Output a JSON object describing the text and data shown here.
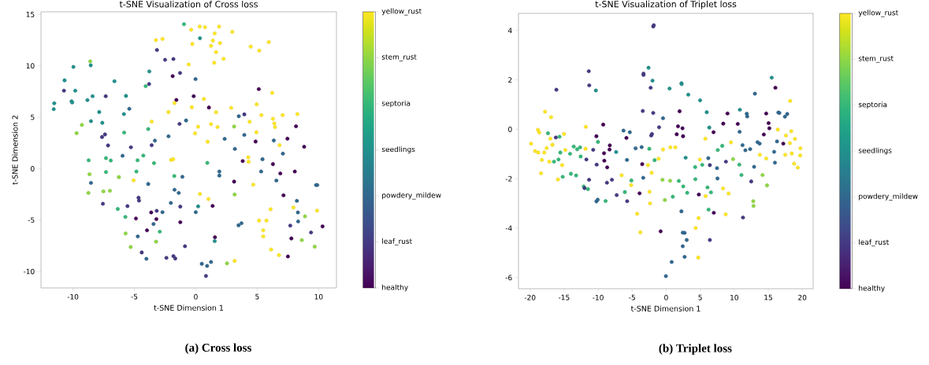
{
  "chart_data": [
    {
      "type": "scatter",
      "title": "t-SNE Visualization of Cross loss",
      "xlabel": "t-SNE Dimension 1",
      "ylabel": "t-SNE Dimension 2",
      "marker": "circle",
      "xlim": [
        -12.6,
        11.45
      ],
      "ylim": [
        -11.6,
        15.26
      ],
      "xticks": [
        -10,
        -5,
        0,
        5,
        10
      ],
      "yticks": [
        -10,
        -5,
        0,
        5,
        10,
        15
      ],
      "clim": [
        0,
        6
      ],
      "cticks": [
        {
          "value": 0,
          "label": "healthy"
        },
        {
          "value": 1,
          "label": "leaf_rust"
        },
        {
          "value": 2,
          "label": "powdery_mildew"
        },
        {
          "value": 3,
          "label": "seedlings"
        },
        {
          "value": 4,
          "label": "septoria"
        },
        {
          "value": 5,
          "label": "stem_rust"
        },
        {
          "value": 6,
          "label": "yellow_rust"
        }
      ],
      "annotations": [
        "(a) Cross loss"
      ],
      "x": [
        -0.96,
        -0.38,
        0.32,
        0.75,
        1.9,
        1.54,
        2.97,
        -3.25,
        -2.71,
        0.34,
        -0.28,
        1.39,
        1.24,
        1.97,
        1.65,
        2.26,
        1.5,
        4.47,
        5.17,
        5.94,
        -3.16,
        -2.5,
        -1.82,
        -0.58,
        -1.28,
        -1.88,
        -0.02,
        -3.78,
        -3.8,
        -4.08,
        -8.59,
        -8.55,
        -9.96,
        -10.68,
        -10.73,
        -9.81,
        -6.62,
        -11.52,
        -11.56,
        -10.11,
        -10.06,
        -8.82,
        -8.4,
        -7.33,
        -5.68,
        -5.41,
        -7.86,
        -5.85,
        -8.53,
        -7.61,
        -9.27,
        -9.7,
        -7.39,
        -7.63,
        -7.14,
        -5.83,
        -5.28,
        -3.87,
        -3.33,
        -3.59,
        -3.59,
        -2.22,
        -1.58,
        -1.73,
        -0.17,
        0.66,
        -0.32,
        -2.22,
        -1.32,
        -0.79,
        1.07,
        1.65,
        2.88,
        0.19,
        -0.06,
        1.24,
        1.77,
        0.96,
        2.35,
        3.12,
        3.5,
        3.95,
        4.38,
        4.96,
        5.34,
        5.13,
        6.22,
        4.94,
        3.95,
        4.87,
        3.18,
        6.28,
        6.39,
        6.45,
        7.07,
        8.27,
        8.16,
        7.46,
        6.35,
        6.82,
        8.82,
        7.09,
        -2.01,
        -1.84,
        -4.27,
        -5.96,
        -7.31,
        -6.92,
        -8.72,
        -4.74,
        -3.4,
        -7.31,
        -8.65,
        -4.83,
        -6.26,
        -5.06,
        -8.53,
        -8.74,
        -7.52,
        -6.99,
        -7.56,
        -3.87,
        -1.75,
        -1.09,
        0.94,
        1.92,
        1.92,
        3.12,
        3.82,
        4.27,
        4.3,
        5.43,
        5.32,
        6.28,
        6.88,
        8.06,
        6.56,
        4.68,
        3.16,
        9.79,
        9.89,
        7.14,
        8.23,
        7.95,
        8.31,
        8.89,
        8.33,
        7.69,
        9.87,
        10.32,
        9.38,
        8.63,
        9.68,
        7.78,
        7.5,
        6.77,
        6.13,
        5.49,
        5.49,
        5.15,
        5.75,
        6.09,
        0.34,
        1.03,
        1.37,
        0.19,
        0.0,
        -1.73,
        -1.39,
        -2.03,
        -1.26,
        -1.26,
        -2.71,
        -3.18,
        -3.63,
        -3.21,
        -3.44,
        -4.66,
        -4.62,
        -5.56,
        -6.35,
        -5.73,
        -4.87,
        -3.97,
        -2.93,
        -3.23,
        -5.71,
        -4.72,
        -5.3,
        -4.4,
        -4.02,
        -2.39,
        -1.82,
        -1.67,
        -0.88,
        1.56,
        1.54,
        3.48,
        3.72,
        2.54,
        3.16,
        0.49,
        0.92,
        1.24,
        0.83
      ],
      "values": [
        14.05,
        13.51,
        13.82,
        13.77,
        13.82,
        13.15,
        13.31,
        12.51,
        12.62,
        12.69,
        12.13,
        12.46,
        11.95,
        12.21,
        11.33,
        10.69,
        10.31,
        11.87,
        11.49,
        12.31,
        11.54,
        10.59,
        10.67,
        10.13,
        9.31,
        9.0,
        8.72,
        9.46,
        8.23,
        8.03,
        10.44,
        10.05,
        9.9,
        8.59,
        7.59,
        7.59,
        8.51,
        6.36,
        5.79,
        6.56,
        6.44,
        6.67,
        7.05,
        7.05,
        7.08,
        5.82,
        5.51,
        5.31,
        4.62,
        4.46,
        4.26,
        3.46,
        3.33,
        3.08,
        2.26,
        3.51,
        2.08,
        3.85,
        2.72,
        2.28,
        4.59,
        3.15,
        6.69,
        6.38,
        7.05,
        6.79,
        5.97,
        5.51,
        4.36,
        4.69,
        5.95,
        5.49,
        5.92,
        4.08,
        3.44,
        4.33,
        4.05,
        2.62,
        2.9,
        4.1,
        5.1,
        5.28,
        4.56,
        6.26,
        5.21,
        7.74,
        7.38,
        3.54,
        3.28,
        2.64,
        1.92,
        4.85,
        4.41,
        4.05,
        5.21,
        5.31,
        4.13,
        2.92,
        2.74,
        2.28,
        2.13,
        1.46,
        0.85,
        0.92,
        1.28,
        1.26,
        1.03,
        0.79,
        0.82,
        0.82,
        0.54,
        -0.33,
        -0.54,
        -0.28,
        -0.82,
        -1.13,
        -1.38,
        -2.36,
        -2.21,
        -2.15,
        -3.41,
        -1.49,
        -0.72,
        -0.79,
        0.56,
        -0.28,
        -0.67,
        -1.26,
        0.74,
        1.1,
        0.67,
        0.92,
        -0.28,
        0.44,
        -0.46,
        -0.28,
        -1.15,
        -1.56,
        -2.51,
        -1.59,
        -1.59,
        -2.59,
        -3.13,
        -3.77,
        -4.26,
        -4.64,
        -5.13,
        -5.54,
        -4.08,
        -5.62,
        -6.21,
        -6.95,
        -7.59,
        -6.79,
        -8.54,
        -8.41,
        -7.87,
        -6.0,
        -6.59,
        -5.05,
        -5.05,
        -3.95,
        -2.46,
        -2.95,
        -3.62,
        -3.67,
        -4.23,
        -2.05,
        -2.36,
        -3.33,
        -3.69,
        -5.21,
        -4.23,
        -4.1,
        -4.26,
        -4.9,
        -5.38,
        -2.82,
        -3.1,
        -3.64,
        -3.92,
        -4.69,
        -4.85,
        -6.0,
        -6.13,
        -7.1,
        -6.31,
        -6.59,
        -7.62,
        -8.15,
        -8.77,
        -8.67,
        -8.51,
        -8.74,
        -7.54,
        -6.67,
        -7.05,
        -5.51,
        -5.31,
        -9.21,
        -8.97,
        -9.26,
        -9.46,
        -9.08,
        -10.44
      ],
      "cvalues": [
        4,
        6,
        6,
        6,
        6,
        6,
        6,
        6,
        6,
        3,
        6,
        6,
        6,
        6,
        6,
        6,
        6,
        6,
        6,
        6,
        1,
        1,
        1,
        6,
        1,
        0,
        2,
        3,
        1,
        4,
        5,
        3,
        3,
        3,
        1,
        3,
        3,
        3,
        3,
        3,
        3,
        3,
        3,
        1,
        3,
        2,
        3,
        3,
        3,
        3,
        5,
        5,
        1,
        1,
        1,
        4,
        1,
        4,
        2,
        1,
        6,
        2,
        0,
        6,
        0,
        6,
        6,
        6,
        1,
        2,
        0,
        6,
        6,
        6,
        6,
        6,
        6,
        6,
        2,
        5,
        2,
        1,
        6,
        6,
        6,
        0,
        6,
        6,
        2,
        0,
        2,
        6,
        6,
        6,
        6,
        6,
        0,
        0,
        2,
        6,
        0,
        2,
        6,
        6,
        4,
        2,
        4,
        4,
        4,
        4,
        4,
        4,
        5,
        4,
        5,
        6,
        2,
        5,
        5,
        5,
        1,
        2,
        4,
        2,
        4,
        2,
        2,
        0,
        0,
        6,
        6,
        2,
        2,
        0,
        0,
        0,
        2,
        6,
        5,
        2,
        2,
        0,
        2,
        6,
        2,
        5,
        2,
        1,
        6,
        0,
        1,
        5,
        5,
        0,
        0,
        6,
        6,
        6,
        6,
        6,
        6,
        6,
        6,
        6,
        0,
        3,
        2,
        2,
        2,
        2,
        1,
        0,
        2,
        1,
        0,
        0,
        2,
        1,
        1,
        1,
        4,
        4,
        0,
        0,
        4,
        5,
        5,
        2,
        5,
        1,
        2,
        1,
        1,
        1,
        1,
        0,
        3,
        2,
        2,
        5,
        6,
        2,
        2,
        2,
        1
      ]
    },
    {
      "type": "scatter",
      "title": "t-SNE Visualization of Triplet loss",
      "xlabel": "t-SNE Dimension 1",
      "marker": "circle",
      "xlim": [
        -21.7,
        21.6
      ],
      "ylim": [
        -6.45,
        4.69
      ],
      "xticks": [
        -20,
        -15,
        -10,
        -5,
        0,
        5,
        10,
        15,
        20
      ],
      "yticks": [
        -6,
        -4,
        -2,
        0,
        2,
        4
      ],
      "clim": [
        0,
        6
      ],
      "cticks": [
        {
          "value": 0,
          "label": "healthy"
        },
        {
          "value": 1,
          "label": "leaf_rust"
        },
        {
          "value": 2,
          "label": "powdery_mildew"
        },
        {
          "value": 3,
          "label": "seedlings"
        },
        {
          "value": 4,
          "label": "septoria"
        },
        {
          "value": 5,
          "label": "stem_rust"
        },
        {
          "value": 6,
          "label": "yellow_rust"
        }
      ],
      "annotations": [
        "(b) Triplet loss"
      ],
      "x": [
        -19.85,
        -19.26,
        -18.8,
        -18.84,
        -18.65,
        -18.38,
        -18.26,
        -17.91,
        -17.8,
        -17.56,
        -17.37,
        -17.17,
        -17.02,
        -16.91,
        -16.71,
        -16.48,
        -16.21,
        -16.13,
        -15.9,
        -15.82,
        -15.67,
        -15.55,
        -15.28,
        -15.2,
        -15.01,
        -14.82,
        -14.12,
        -13.58,
        -13.23,
        -13.08,
        -12.65,
        -14.0,
        -12.57,
        -12.11,
        -11.99,
        -11.49,
        -11.84,
        -11.8,
        -11.72,
        -11.33,
        -11.37,
        -11.3,
        -10.72,
        -10.33,
        -10.25,
        -10.21,
        -10.02,
        -10.25,
        -10.06,
        -9.25,
        -9.13,
        -9.09,
        -8.67,
        -8.7,
        -8.9,
        -8.32,
        -8.28,
        -7.97,
        -7.35,
        -7.27,
        -6.54,
        -6.27,
        -6.07,
        -5.84,
        -5.76,
        -5.73,
        -5.34,
        -5.15,
        -5.11,
        -4.49,
        -4.26,
        -3.91,
        -3.79,
        -3.6,
        -3.52,
        -3.44,
        -3.37,
        -3.33,
        -3.33,
        -2.67,
        -2.59,
        -2.48,
        -2.44,
        -2.36,
        -2.28,
        -2.2,
        -2.13,
        -2.09,
        -2.01,
        -1.9,
        -1.82,
        -1.9,
        -1.7,
        -1.12,
        -1.04,
        -0.81,
        -0.54,
        -0.46,
        -0.46,
        -0.19,
        -0.04,
        0.5,
        0.58,
        0.62,
        0.81,
        0.97,
        1.35,
        1.55,
        1.74,
        1.86,
        1.97,
        2.24,
        2.24,
        2.28,
        2.4,
        2.48,
        2.51,
        2.44,
        2.71,
        2.44,
        2.71,
        2.86,
        3.02,
        3.09,
        3.25,
        4.26,
        4.29,
        4.33,
        4.76,
        4.72,
        4.8,
        4.95,
        4.99,
        5.3,
        5.76,
        5.8,
        5.96,
        6.07,
        6.19,
        6.23,
        6.34,
        6.42,
        6.42,
        6.58,
        6.96,
        7.0,
        7.54,
        7.47,
        7.58,
        8.24,
        8.36,
        8.39,
        8.74,
        8.78,
        9.01,
        9.17,
        9.52,
        9.83,
        10.52,
        10.75,
        10.83,
        10.79,
        11.06,
        11.22,
        11.29,
        11.64,
        11.84,
        11.91,
        12.34,
        12.5,
        12.8,
        12.84,
        12.92,
        13.04,
        13.42,
        13.73,
        13.77,
        14.16,
        14.35,
        14.7,
        14.82,
        14.7,
        15.05,
        15.16,
        15.51,
        15.86,
        15.98,
        16.05,
        16.29,
        16.4,
        16.48,
        16.63,
        17.21,
        17.45,
        17.49,
        17.6,
        17.79,
        18.18,
        18.22,
        18.38,
        18.45,
        18.8,
        18.92,
        19.34,
        19.73,
        19.69
      ],
      "values": [
        -0.58,
        -0.88,
        -0.94,
        -0.02,
        -0.13,
        -1.78,
        -1.24,
        -0.94,
        0.71,
        -0.76,
        -0.16,
        -1.31,
        -0.38,
        0.49,
        -0.63,
        -1.31,
        -0.33,
        1.6,
        -2.03,
        -1.22,
        -0.3,
        -0.94,
        -1.45,
        -1.92,
        -0.19,
        -0.84,
        -0.99,
        -0.7,
        -1.87,
        -0.81,
        -0.73,
        -1.8,
        -1.1,
        -2.31,
        -2.38,
        -2.42,
        -0.79,
        0.1,
        -1.22,
        -2.04,
        2.35,
        1.78,
        -0.83,
        1.57,
        -0.28,
        -1.43,
        -0.51,
        -2.92,
        -2.85,
        0.19,
        -0.97,
        -1.27,
        -1.54,
        -2.16,
        -2.9,
        -0.82,
        -0.65,
        -2.04,
        -0.92,
        -2.66,
        -1.86,
        -0.05,
        -2.54,
        -0.35,
        -1.24,
        -2.91,
        -0.12,
        -2.26,
        -2.07,
        -0.77,
        -3.42,
        -2.59,
        -4.17,
        -0.72,
        -1.41,
        0.74,
        -1.96,
        2.25,
        2.2,
        -1.45,
        2.49,
        -0.79,
        -2.53,
        -3.0,
        1.68,
        -0.25,
        -1.76,
        -0.19,
        1.97,
        4.16,
        4.21,
        0.66,
        -1.25,
        -1.19,
        0.08,
        -4.13,
        -2.04,
        -0.82,
        0.45,
        -2.86,
        -5.94,
        1.65,
        -2.08,
        -0.73,
        -5.37,
        -2.73,
        -0.73,
        -0.2,
        0.12,
        -2.09,
        0.73,
        -3.32,
        1.86,
        1.83,
        0.04,
        -0.28,
        -2.31,
        -4.18,
        -4.19,
        -4.73,
        -5.16,
        -1.15,
        -4.48,
        -2.57,
        1.4,
        -1.53,
        -2.02,
        -3.99,
        -3.59,
        -5.19,
        -2.64,
        -1.22,
        1.17,
        -1.44,
        -0.38,
        -2.7,
        0.69,
        -2.35,
        -1.17,
        -3.25,
        0.07,
        -1.45,
        -4.48,
        -2.55,
        -0.12,
        -3.38,
        -1.99,
        -1.57,
        -0.84,
        -0.67,
        -2.39,
        0.23,
        -3.44,
        -1.31,
        0.64,
        -2.6,
        -0.53,
        -1.21,
        0.22,
        -1.43,
        0.79,
        -0.1,
        -1.85,
        -0.64,
        -3.57,
        -0.85,
        0.63,
        0.52,
        -0.8,
        -2.11,
        -2.91,
        -3.1,
        -1.52,
        1.44,
        -0.52,
        -0.58,
        -1.03,
        -1.85,
        -0.21,
        -1.18,
        -2.27,
        0.64,
        0.25,
        0.04,
        2.09,
        -0.91,
        -1.35,
        1.68,
        -0.49,
        -0.01,
        0.68,
        0.66,
        -0.58,
        0.51,
        -1.03,
        -0.25,
        0.62,
        -0.56,
        1.15,
        -0.08,
        -0.98,
        -1.39,
        -0.39,
        -1.55,
        -0.77,
        -1.06
      ],
      "cvalues": [
        6,
        6,
        6,
        6,
        6,
        6,
        6,
        6,
        6,
        6,
        4,
        6,
        6,
        6,
        6,
        4,
        1,
        1,
        6,
        4,
        4,
        4,
        6,
        4,
        6,
        6,
        4,
        4,
        4,
        4,
        4,
        4,
        4,
        4,
        1,
        4,
        6,
        6,
        1,
        1,
        1,
        1,
        1,
        3,
        0,
        1,
        4,
        2,
        2,
        0,
        0,
        0,
        0,
        1,
        4,
        0,
        0,
        1,
        3,
        1,
        6,
        2,
        4,
        0,
        2,
        1,
        2,
        6,
        4,
        2,
        6,
        0,
        6,
        2,
        0,
        1,
        2,
        1,
        1,
        6,
        3,
        4,
        6,
        6,
        1,
        1,
        6,
        1,
        3,
        1,
        1,
        1,
        4,
        6,
        1,
        0,
        5,
        6,
        2,
        5,
        2,
        3,
        5,
        6,
        2,
        4,
        6,
        0,
        0,
        4,
        0,
        2,
        3,
        3,
        0,
        0,
        4,
        2,
        2,
        2,
        2,
        3,
        2,
        4,
        3,
        4,
        4,
        6,
        6,
        6,
        0,
        6,
        3,
        4,
        6,
        6,
        3,
        4,
        2,
        4,
        3,
        1,
        1,
        4,
        0,
        0,
        2,
        2,
        4,
        4,
        6,
        0,
        6,
        1,
        0,
        6,
        6,
        5,
        0,
        4,
        3,
        2,
        4,
        2,
        1,
        2,
        2,
        2,
        2,
        1,
        5,
        5,
        2,
        2,
        2,
        2,
        6,
        5,
        0,
        6,
        5,
        0,
        0,
        0,
        3,
        2,
        2,
        0,
        2,
        6,
        2,
        2,
        0,
        2,
        6,
        6,
        2,
        6,
        6,
        6,
        6,
        6,
        6,
        6,
        6,
        6
      ]
    }
  ]
}
